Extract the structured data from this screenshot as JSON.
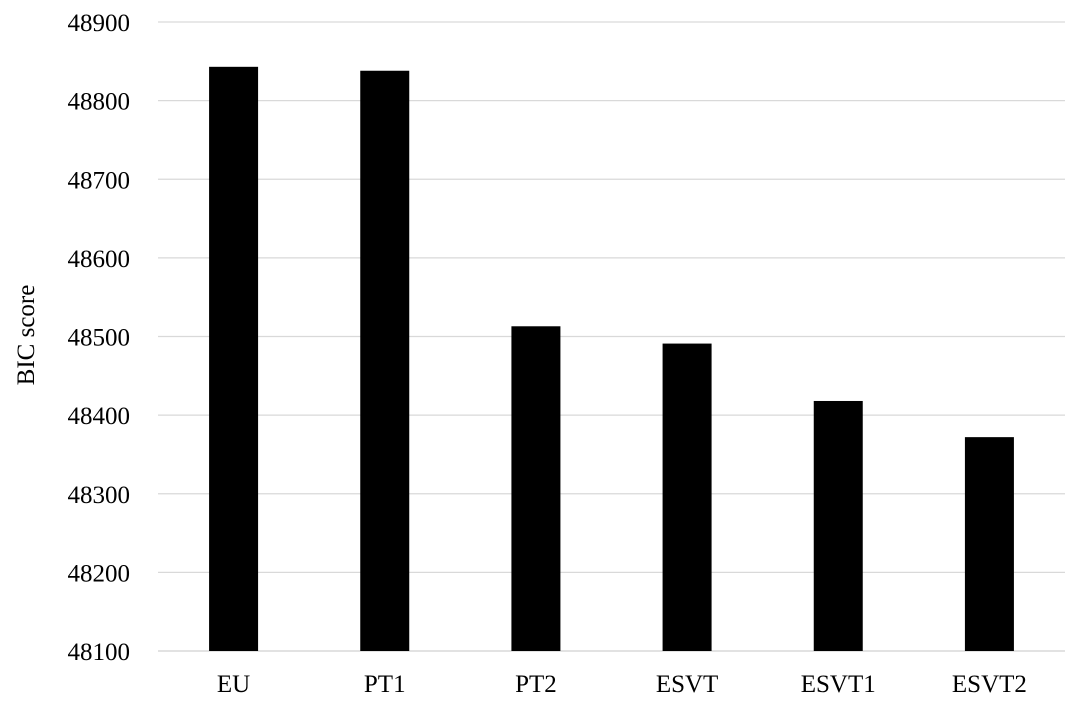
{
  "chart_data": {
    "type": "bar",
    "title": "",
    "xlabel": "",
    "ylabel": "BIC score",
    "categories": [
      "EU",
      "PT1",
      "PT2",
      "ESVT",
      "ESVT1",
      "ESVT2"
    ],
    "series": [
      {
        "values": [
          48843,
          48838,
          48513,
          48491,
          48418,
          48372
        ]
      }
    ],
    "ylim": [
      48100,
      48900
    ],
    "yticks": [
      48100,
      48200,
      48300,
      48400,
      48500,
      48600,
      48700,
      48800,
      48900
    ],
    "grid": true,
    "legend": "none",
    "colors": {
      "bar": "#000000",
      "grid": "#d9d9d9",
      "axis": "#d9d9d9"
    }
  }
}
